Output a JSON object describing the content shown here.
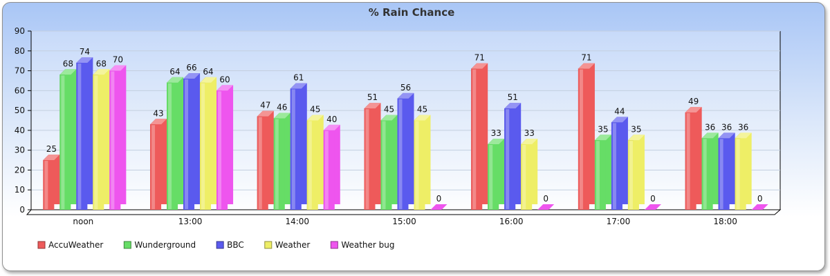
{
  "chart_data": {
    "type": "bar",
    "title": "% Rain Chance",
    "xlabel": "",
    "ylabel": "",
    "ylim": [
      0,
      90
    ],
    "yticks": [
      0,
      10,
      20,
      30,
      40,
      50,
      60,
      70,
      80,
      90
    ],
    "grid": true,
    "legend_position": "bottom-left",
    "categories": [
      "noon",
      "13:00",
      "14:00",
      "15:00",
      "16:00",
      "17:00",
      "18:00"
    ],
    "series": [
      {
        "name": "AccuWeather",
        "color": "#ee5a5a",
        "values": [
          25,
          43,
          47,
          51,
          71,
          71,
          49
        ]
      },
      {
        "name": "Wunderground",
        "color": "#66dd66",
        "values": [
          68,
          64,
          46,
          45,
          33,
          35,
          36
        ]
      },
      {
        "name": "BBC",
        "color": "#5a5aee",
        "values": [
          74,
          66,
          61,
          56,
          51,
          44,
          36
        ]
      },
      {
        "name": "Weather",
        "color": "#eeee66",
        "values": [
          68,
          64,
          45,
          45,
          33,
          35,
          36
        ]
      },
      {
        "name": "Weather bug",
        "color": "#ee55ee",
        "values": [
          70,
          60,
          40,
          0,
          0,
          0,
          0
        ]
      }
    ]
  }
}
